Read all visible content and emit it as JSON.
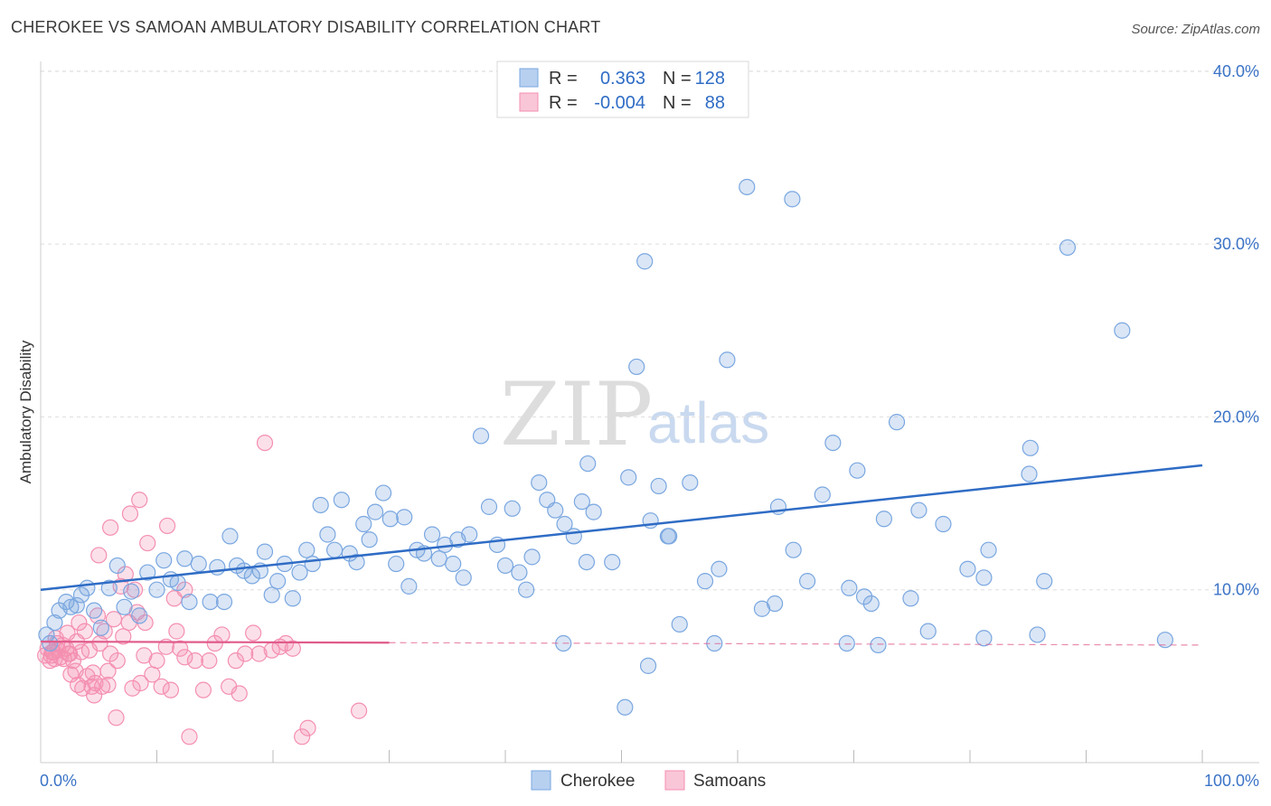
{
  "title": "CHEROKEE VS SAMOAN AMBULATORY DISABILITY CORRELATION CHART",
  "source": "Source: ZipAtlas.com",
  "watermark": {
    "part1": "ZIP",
    "part2": "atlas"
  },
  "chart_data": {
    "type": "scatter",
    "ylabel": "Ambulatory Disability",
    "xlim": [
      0,
      100
    ],
    "ylim": [
      0,
      43
    ],
    "x_ticks": [
      {
        "value": 0,
        "label": "0.0%"
      },
      {
        "value": 100,
        "label": "100.0%"
      }
    ],
    "y_ticks": [
      {
        "value": 10,
        "label": "10.0%"
      },
      {
        "value": 20,
        "label": "20.0%"
      },
      {
        "value": 30,
        "label": "30.0%"
      },
      {
        "value": 40,
        "label": "40.0%"
      }
    ],
    "grid": true,
    "legend_position": "top-center",
    "legend": [
      {
        "r_label": "R =",
        "r_value": "0.363",
        "n_label": "N =",
        "n_value": "128"
      },
      {
        "r_label": "R =",
        "r_value": "-0.004",
        "n_label": "N =",
        "n_value": "88"
      }
    ],
    "series": [
      {
        "name": "Cherokee",
        "color": "#7aa7e0",
        "line_color": "#2f6cc5",
        "trend": {
          "x0": 0,
          "y0": 10.0,
          "x1": 100,
          "y1": 17.2,
          "dashed_from": null
        },
        "points": [
          [
            0.5,
            7.4
          ],
          [
            0.8,
            6.9
          ],
          [
            1.2,
            8.1
          ],
          [
            1.6,
            8.8
          ],
          [
            2.2,
            9.3
          ],
          [
            2.6,
            9.0
          ],
          [
            3.1,
            9.1
          ],
          [
            3.5,
            9.7
          ],
          [
            4.0,
            10.1
          ],
          [
            4.6,
            8.8
          ],
          [
            5.2,
            7.8
          ],
          [
            5.9,
            10.1
          ],
          [
            6.6,
            11.4
          ],
          [
            7.2,
            9.0
          ],
          [
            7.8,
            9.9
          ],
          [
            8.5,
            8.5
          ],
          [
            9.2,
            11.0
          ],
          [
            10.0,
            10.0
          ],
          [
            10.6,
            11.7
          ],
          [
            11.2,
            10.6
          ],
          [
            11.8,
            10.4
          ],
          [
            12.4,
            11.8
          ],
          [
            12.8,
            9.3
          ],
          [
            13.6,
            11.5
          ],
          [
            14.6,
            9.3
          ],
          [
            15.2,
            11.3
          ],
          [
            15.8,
            9.3
          ],
          [
            16.3,
            13.1
          ],
          [
            16.9,
            11.4
          ],
          [
            17.5,
            11.1
          ],
          [
            18.2,
            10.8
          ],
          [
            18.9,
            11.1
          ],
          [
            19.3,
            12.2
          ],
          [
            19.9,
            9.7
          ],
          [
            20.4,
            10.5
          ],
          [
            21.0,
            11.5
          ],
          [
            21.7,
            9.5
          ],
          [
            22.3,
            11.0
          ],
          [
            22.9,
            12.3
          ],
          [
            23.4,
            11.5
          ],
          [
            24.1,
            14.9
          ],
          [
            24.7,
            13.2
          ],
          [
            25.3,
            12.3
          ],
          [
            25.9,
            15.2
          ],
          [
            26.6,
            12.1
          ],
          [
            27.2,
            11.6
          ],
          [
            27.8,
            13.8
          ],
          [
            28.3,
            12.9
          ],
          [
            28.8,
            14.5
          ],
          [
            29.5,
            15.6
          ],
          [
            30.1,
            14.1
          ],
          [
            30.6,
            11.5
          ],
          [
            31.3,
            14.2
          ],
          [
            31.7,
            10.2
          ],
          [
            32.4,
            12.3
          ],
          [
            33.0,
            12.1
          ],
          [
            33.7,
            13.2
          ],
          [
            34.3,
            11.8
          ],
          [
            34.8,
            12.6
          ],
          [
            35.5,
            11.5
          ],
          [
            35.9,
            12.9
          ],
          [
            36.4,
            10.7
          ],
          [
            36.9,
            13.2
          ],
          [
            37.9,
            18.9
          ],
          [
            38.6,
            14.8
          ],
          [
            39.3,
            12.6
          ],
          [
            40.0,
            11.4
          ],
          [
            40.6,
            14.7
          ],
          [
            41.2,
            11.0
          ],
          [
            41.8,
            10.0
          ],
          [
            42.3,
            11.9
          ],
          [
            42.9,
            16.2
          ],
          [
            43.6,
            15.2
          ],
          [
            44.3,
            14.6
          ],
          [
            45.1,
            13.8
          ],
          [
            45.9,
            13.1
          ],
          [
            46.6,
            15.1
          ],
          [
            47.1,
            17.3
          ],
          [
            47.6,
            14.5
          ],
          [
            49.2,
            11.6
          ],
          [
            50.6,
            16.5
          ],
          [
            51.3,
            22.9
          ],
          [
            52.5,
            14.0
          ],
          [
            53.2,
            16.0
          ],
          [
            54.0,
            13.1
          ],
          [
            55.0,
            8.0
          ],
          [
            55.9,
            16.2
          ],
          [
            57.2,
            10.5
          ],
          [
            58.4,
            11.2
          ],
          [
            59.1,
            23.3
          ],
          [
            60.8,
            33.3
          ],
          [
            62.1,
            8.9
          ],
          [
            63.5,
            14.8
          ],
          [
            64.8,
            12.3
          ],
          [
            66.0,
            10.5
          ],
          [
            67.3,
            15.5
          ],
          [
            68.2,
            18.5
          ],
          [
            69.6,
            10.1
          ],
          [
            70.9,
            9.6
          ],
          [
            71.5,
            9.2
          ],
          [
            72.6,
            14.1
          ],
          [
            73.7,
            19.7
          ],
          [
            74.9,
            9.5
          ],
          [
            75.6,
            14.6
          ],
          [
            76.4,
            7.6
          ],
          [
            77.7,
            13.8
          ],
          [
            54.1,
            13.1
          ],
          [
            52.0,
            29.0
          ],
          [
            58.0,
            6.9
          ],
          [
            69.4,
            6.9
          ],
          [
            72.1,
            6.8
          ],
          [
            79.8,
            11.2
          ],
          [
            81.2,
            7.2
          ],
          [
            85.8,
            7.4
          ],
          [
            93.1,
            25.0
          ],
          [
            96.8,
            7.1
          ],
          [
            81.2,
            10.7
          ],
          [
            85.1,
            16.7
          ],
          [
            86.4,
            10.5
          ],
          [
            81.6,
            12.3
          ],
          [
            85.2,
            18.2
          ],
          [
            88.4,
            29.8
          ],
          [
            45.0,
            6.9
          ],
          [
            47.0,
            11.6
          ],
          [
            52.3,
            5.6
          ],
          [
            63.2,
            9.2
          ],
          [
            64.7,
            32.6
          ],
          [
            70.3,
            16.9
          ],
          [
            50.3,
            3.2
          ]
        ]
      },
      {
        "name": "Samoans",
        "color": "#f48fb1",
        "line_color": "#e05a8a",
        "trend": {
          "x0": 0,
          "y0": 7.0,
          "x1": 100,
          "y1": 6.8,
          "dashed_from": 30
        },
        "points": [
          [
            0.4,
            6.2
          ],
          [
            0.6,
            6.6
          ],
          [
            0.8,
            5.9
          ],
          [
            1.0,
            6.4
          ],
          [
            1.2,
            6.0
          ],
          [
            1.3,
            7.2
          ],
          [
            1.5,
            6.5
          ],
          [
            1.7,
            6.1
          ],
          [
            1.9,
            6.8
          ],
          [
            2.0,
            6.0
          ],
          [
            2.2,
            6.6
          ],
          [
            2.4,
            6.3
          ],
          [
            2.6,
            5.1
          ],
          [
            2.8,
            5.9
          ],
          [
            3.0,
            5.3
          ],
          [
            3.1,
            7.0
          ],
          [
            3.3,
            8.1
          ],
          [
            3.5,
            6.4
          ],
          [
            3.6,
            4.3
          ],
          [
            3.8,
            7.6
          ],
          [
            4.0,
            5.0
          ],
          [
            4.2,
            6.5
          ],
          [
            4.4,
            4.4
          ],
          [
            4.5,
            5.2
          ],
          [
            4.7,
            4.6
          ],
          [
            4.9,
            8.5
          ],
          [
            5.1,
            6.9
          ],
          [
            5.3,
            4.4
          ],
          [
            5.5,
            7.6
          ],
          [
            5.8,
            5.3
          ],
          [
            6.0,
            6.3
          ],
          [
            6.3,
            8.3
          ],
          [
            6.6,
            5.9
          ],
          [
            6.9,
            10.2
          ],
          [
            7.1,
            7.3
          ],
          [
            7.3,
            10.9
          ],
          [
            7.6,
            8.1
          ],
          [
            7.9,
            4.3
          ],
          [
            8.1,
            10.0
          ],
          [
            8.3,
            8.7
          ],
          [
            8.6,
            4.6
          ],
          [
            8.9,
            6.2
          ],
          [
            9.2,
            12.7
          ],
          [
            9.6,
            5.1
          ],
          [
            10.0,
            5.9
          ],
          [
            10.4,
            4.4
          ],
          [
            10.8,
            6.7
          ],
          [
            11.2,
            4.2
          ],
          [
            11.7,
            7.6
          ],
          [
            12.0,
            6.6
          ],
          [
            12.4,
            6.1
          ],
          [
            12.8,
            1.5
          ],
          [
            13.3,
            5.9
          ],
          [
            14.0,
            4.2
          ],
          [
            14.5,
            5.9
          ],
          [
            15.0,
            6.9
          ],
          [
            15.6,
            7.4
          ],
          [
            16.2,
            4.4
          ],
          [
            16.8,
            5.9
          ],
          [
            17.1,
            4.0
          ],
          [
            17.6,
            6.3
          ],
          [
            18.3,
            7.5
          ],
          [
            18.8,
            6.3
          ],
          [
            19.3,
            18.5
          ],
          [
            19.9,
            6.5
          ],
          [
            20.6,
            6.7
          ],
          [
            21.1,
            6.9
          ],
          [
            21.7,
            6.6
          ],
          [
            22.5,
            1.5
          ],
          [
            23.0,
            2.0
          ],
          [
            27.4,
            3.0
          ],
          [
            3.2,
            4.5
          ],
          [
            4.6,
            3.9
          ],
          [
            5.8,
            4.5
          ],
          [
            5.0,
            12.0
          ],
          [
            6.0,
            13.6
          ],
          [
            7.7,
            14.4
          ],
          [
            8.5,
            15.2
          ],
          [
            10.9,
            13.7
          ],
          [
            12.4,
            10.0
          ],
          [
            1.1,
            6.4
          ],
          [
            2.3,
            7.5
          ],
          [
            0.9,
            6.2
          ],
          [
            1.4,
            6.9
          ],
          [
            2.5,
            6.3
          ],
          [
            6.5,
            2.6
          ],
          [
            9.0,
            8.1
          ],
          [
            11.5,
            9.5
          ]
        ]
      }
    ]
  }
}
